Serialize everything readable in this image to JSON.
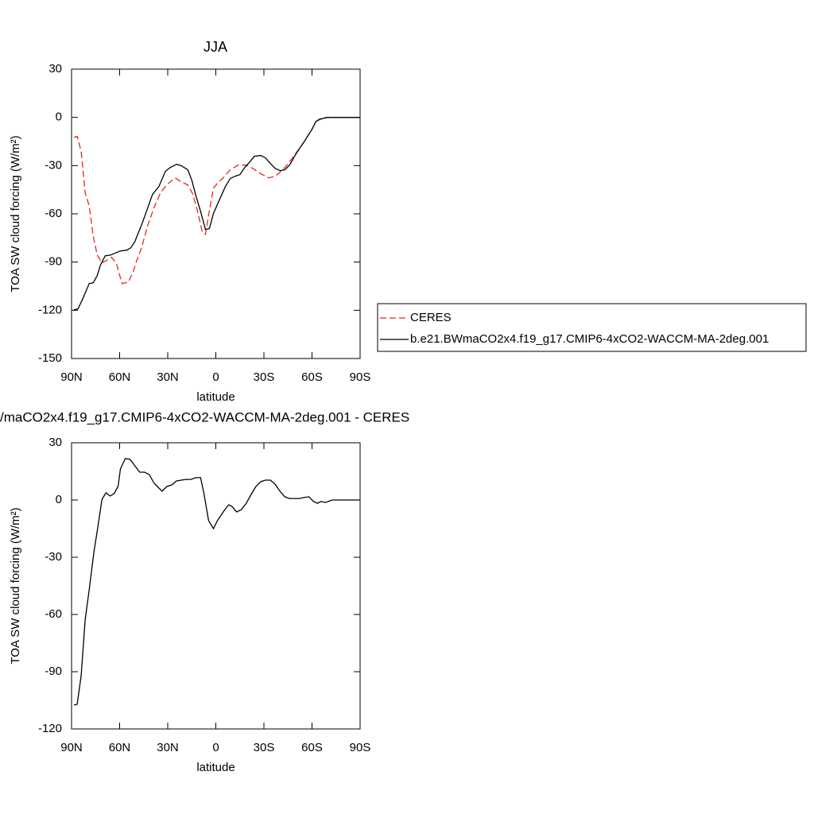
{
  "chart_data": [
    {
      "type": "line",
      "title": "JJA",
      "xlabel": "latitude",
      "ylabel": "TOA SW cloud forcing (W/m²)",
      "xlim": [
        90,
        -90
      ],
      "xticks": [
        {
          "value": 90,
          "label": "90N"
        },
        {
          "value": 60,
          "label": "60N"
        },
        {
          "value": 30,
          "label": "30N"
        },
        0,
        {
          "value": -30,
          "label": "30S"
        },
        {
          "value": -60,
          "label": "60S"
        },
        {
          "value": -90,
          "label": "90S"
        }
      ],
      "ylim": [
        -150,
        30
      ],
      "yticks": [
        -150,
        -120,
        -90,
        -60,
        -30,
        0,
        30
      ],
      "legend": "right",
      "series": [
        {
          "name": "CERES",
          "color": "#e8261f",
          "dash": true,
          "x": [
            88.5,
            86.5,
            84,
            81.5,
            79,
            76.5,
            74,
            71,
            68,
            65,
            62,
            58.5,
            54.5,
            51.5,
            49.5,
            46.5,
            42.5,
            38.5,
            34.5,
            31.5,
            28.5,
            25.5,
            21.5,
            17.5,
            14.5,
            11.5,
            8.5,
            6.5,
            4.5,
            1.5,
            -1,
            -5,
            -9,
            -14,
            -19,
            -23,
            -28,
            -33,
            -37,
            -40,
            -44,
            -49,
            -55,
            -60,
            -62.5,
            -65.5,
            -69.5,
            -90
          ],
          "values": [
            -12.4,
            -11.9,
            -21.3,
            -47,
            -54.9,
            -73.7,
            -85.6,
            -90.5,
            -89,
            -87,
            -91,
            -103.4,
            -102.4,
            -96,
            -89.5,
            -81.6,
            -67.3,
            -55.9,
            -47,
            -43,
            -40.1,
            -37.6,
            -40.1,
            -42,
            -47.5,
            -57.9,
            -71.2,
            -72.7,
            -60.8,
            -44,
            -41,
            -37.1,
            -32.6,
            -29.7,
            -29.7,
            -31.7,
            -35.1,
            -37.6,
            -36.6,
            -34.1,
            -30.2,
            -23.7,
            -15.3,
            -7.4,
            -2.5,
            -0.5,
            0,
            0
          ]
        },
        {
          "name": "b.e21.BWmaCO2x4.f19_g17.CMIP6-4xCO2-WACCM-MA-2deg.001",
          "color": "#000000",
          "dash": false,
          "x": [
            88.5,
            86,
            83,
            79,
            76.5,
            74,
            72,
            69,
            65.5,
            62,
            59.5,
            55.5,
            53,
            50.5,
            45.5,
            39.5,
            35.5,
            31.5,
            28.5,
            24.5,
            21.5,
            17.5,
            15,
            12.5,
            9.5,
            6.5,
            4,
            1.5,
            -2,
            -6,
            -9,
            -12,
            -15,
            -18,
            -22,
            -24,
            -28,
            -31,
            -34,
            -37,
            -40,
            -43,
            -46,
            -50,
            -55,
            -60,
            -62.5,
            -65.5,
            -69.5,
            -90
          ],
          "values": [
            -119.7,
            -119.2,
            -112.8,
            -103.4,
            -102.9,
            -98.4,
            -92,
            -86.1,
            -85.6,
            -84.1,
            -83.1,
            -82.6,
            -81.1,
            -77.2,
            -64.8,
            -48,
            -43,
            -33.6,
            -31.2,
            -29.2,
            -30.1,
            -32.6,
            -39.1,
            -48.5,
            -58.4,
            -69.7,
            -69.2,
            -59.8,
            -51.9,
            -43,
            -38.1,
            -36.6,
            -35.6,
            -31.2,
            -26.7,
            -24.2,
            -23.7,
            -25.2,
            -28.7,
            -31.7,
            -33.1,
            -32.6,
            -29.7,
            -22.7,
            -15.3,
            -7.4,
            -2.5,
            -1,
            0,
            0
          ]
        }
      ]
    },
    {
      "type": "line",
      "title": "/maCO2x4.f19_g17.CMIP6-4xCO2-WACCM-MA-2deg.001 - CERES",
      "xlabel": "latitude",
      "ylabel": "TOA SW cloud forcing (W/m²)",
      "xlim": [
        90,
        -90
      ],
      "xticks": [
        {
          "value": 90,
          "label": "90N"
        },
        {
          "value": 60,
          "label": "60N"
        },
        {
          "value": 30,
          "label": "30N"
        },
        0,
        {
          "value": -30,
          "label": "30S"
        },
        {
          "value": -60,
          "label": "60S"
        },
        {
          "value": -90,
          "label": "90S"
        }
      ],
      "ylim": [
        -120,
        30
      ],
      "yticks": [
        -120,
        -90,
        -60,
        -30,
        0,
        30
      ],
      "series": [
        {
          "color": "#000000",
          "dash": false,
          "x": [
            88.5,
            86.5,
            84,
            81.5,
            79,
            76,
            74,
            71,
            68.5,
            66,
            63.5,
            61,
            59.5,
            56.5,
            53.5,
            50.5,
            47.5,
            44.5,
            41.5,
            38.5,
            36.5,
            33.5,
            30.5,
            27.5,
            24.5,
            21.5,
            18.5,
            15.5,
            12.5,
            9.5,
            7.5,
            4.5,
            1.5,
            -1,
            -5,
            -8,
            -10,
            -13,
            -16,
            -19,
            -22,
            -25,
            -28,
            -31,
            -34,
            -37,
            -40,
            -43,
            -46,
            -49,
            -52,
            -55,
            -58,
            -61,
            -63.5,
            -65.5,
            -68.5,
            -72.5,
            -90
          ],
          "values": [
            -107.5,
            -107.1,
            -92.1,
            -62.9,
            -47.1,
            -27.1,
            -16.3,
            0.4,
            3.8,
            2.1,
            3.3,
            7.1,
            16.3,
            21.7,
            21.3,
            17.9,
            14.6,
            14.6,
            13.3,
            8.8,
            7.1,
            4.6,
            7.1,
            7.9,
            10,
            10.4,
            10.8,
            10.8,
            11.7,
            11.7,
            3.8,
            -10.8,
            -15,
            -10.8,
            -5.8,
            -2.5,
            -3.3,
            -6.3,
            -5,
            -1.7,
            2.9,
            7.1,
            9.6,
            10.4,
            10.4,
            8.3,
            4.6,
            1.7,
            0.8,
            0.8,
            0.8,
            1.3,
            1.7,
            -0.8,
            -1.7,
            -0.8,
            -1.3,
            0,
            0
          ]
        }
      ]
    }
  ]
}
